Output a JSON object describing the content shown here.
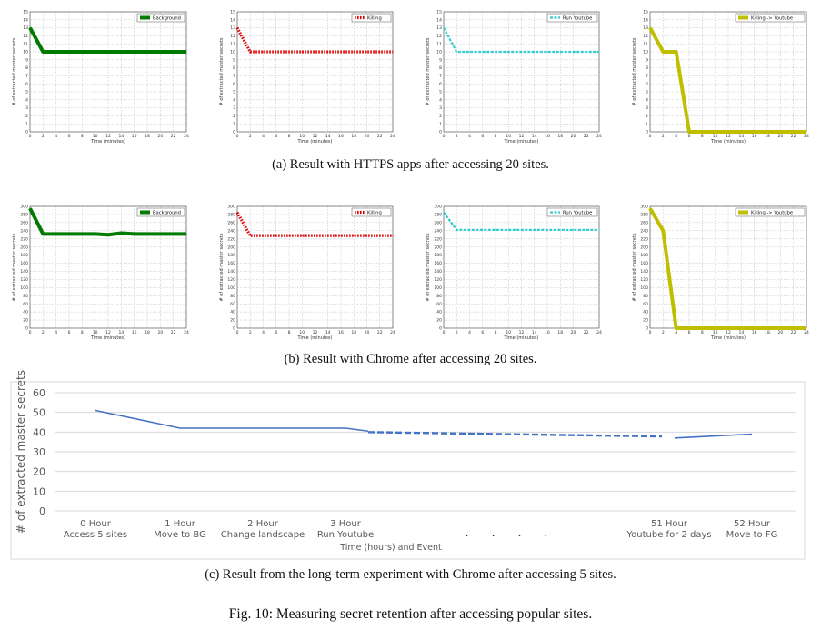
{
  "captions": {
    "a": "(a) Result with HTTPS apps after accessing 20 sites.",
    "b": "(b) Result with Chrome after accessing 20 sites.",
    "c": "(c) Result from the long-term experiment with Chrome after accessing 5 sites.",
    "figure": "Fig. 10: Measuring secret retention after accessing popular sites."
  },
  "chart_data": [
    {
      "type": "line",
      "panel": "a",
      "xlabel": "Time (minutes)",
      "ylabel": "# of extracted master secrets",
      "xlim": [
        0,
        24
      ],
      "ylim": [
        0,
        15
      ],
      "xticks": [
        0,
        2,
        4,
        6,
        8,
        10,
        12,
        14,
        16,
        18,
        20,
        22,
        24
      ],
      "yticks": [
        0,
        1,
        2,
        3,
        4,
        5,
        6,
        7,
        8,
        9,
        10,
        11,
        12,
        13,
        14,
        15
      ],
      "grid": true,
      "legend": "top-right",
      "series": [
        {
          "name": "Background",
          "color": "#007a00",
          "style": "solid",
          "x": [
            0,
            2,
            4,
            6,
            8,
            10,
            12,
            14,
            16,
            18,
            20,
            22,
            24
          ],
          "y": [
            13,
            10,
            10,
            10,
            10,
            10,
            10,
            10,
            10,
            10,
            10,
            10,
            10
          ]
        }
      ]
    },
    {
      "type": "line",
      "panel": "a",
      "xlabel": "Time (minutes)",
      "ylabel": "# of extracted master secrets",
      "xlim": [
        0,
        24
      ],
      "ylim": [
        0,
        15
      ],
      "xticks": [
        0,
        2,
        4,
        6,
        8,
        10,
        12,
        14,
        16,
        18,
        20,
        22,
        24
      ],
      "yticks": [
        0,
        1,
        2,
        3,
        4,
        5,
        6,
        7,
        8,
        9,
        10,
        11,
        12,
        13,
        14,
        15
      ],
      "grid": true,
      "legend": "top-right",
      "series": [
        {
          "name": "Killing",
          "color": "#e00000",
          "style": "dotted",
          "x": [
            0,
            2,
            4,
            6,
            8,
            10,
            12,
            14,
            16,
            18,
            20,
            22,
            24
          ],
          "y": [
            13,
            10,
            10,
            10,
            10,
            10,
            10,
            10,
            10,
            10,
            10,
            10,
            10
          ]
        }
      ]
    },
    {
      "type": "line",
      "panel": "a",
      "xlabel": "Time (minutes)",
      "ylabel": "# of extracted master secrets",
      "xlim": [
        0,
        24
      ],
      "ylim": [
        0,
        15
      ],
      "xticks": [
        0,
        2,
        4,
        6,
        8,
        10,
        12,
        14,
        16,
        18,
        20,
        22,
        24
      ],
      "yticks": [
        0,
        1,
        2,
        3,
        4,
        5,
        6,
        7,
        8,
        9,
        10,
        11,
        12,
        13,
        14,
        15
      ],
      "grid": true,
      "legend": "top-right",
      "series": [
        {
          "name": "Run Youtube",
          "color": "#33cccc",
          "style": "dashed",
          "x": [
            0,
            2,
            4,
            6,
            8,
            10,
            12,
            14,
            16,
            18,
            20,
            22,
            24
          ],
          "y": [
            13,
            10,
            10,
            10,
            10,
            10,
            10,
            10,
            10,
            10,
            10,
            10,
            10
          ]
        }
      ]
    },
    {
      "type": "line",
      "panel": "a",
      "xlabel": "Time (minutes)",
      "ylabel": "# of extracted master secrets",
      "xlim": [
        0,
        24
      ],
      "ylim": [
        0,
        15
      ],
      "xticks": [
        0,
        2,
        4,
        6,
        8,
        10,
        12,
        14,
        16,
        18,
        20,
        22,
        24
      ],
      "yticks": [
        0,
        1,
        2,
        3,
        4,
        5,
        6,
        7,
        8,
        9,
        10,
        11,
        12,
        13,
        14,
        15
      ],
      "grid": true,
      "legend": "top-right",
      "series": [
        {
          "name": "Killing -> Youtube",
          "color": "#bfbf00",
          "style": "solid",
          "x": [
            0,
            2,
            4,
            6,
            8,
            10,
            12,
            14,
            16,
            18,
            20,
            22,
            24
          ],
          "y": [
            13,
            10,
            10,
            0,
            0,
            0,
            0,
            0,
            0,
            0,
            0,
            0,
            0
          ]
        }
      ]
    },
    {
      "type": "line",
      "panel": "b",
      "xlabel": "Time (minutes)",
      "ylabel": "# of extracted master secrets",
      "xlim": [
        0,
        24
      ],
      "ylim": [
        0,
        300
      ],
      "xticks": [
        0,
        2,
        4,
        6,
        8,
        10,
        12,
        14,
        16,
        18,
        20,
        22,
        24
      ],
      "yticks": [
        0,
        20,
        40,
        60,
        80,
        100,
        120,
        140,
        160,
        180,
        200,
        220,
        240,
        260,
        280,
        300
      ],
      "grid": true,
      "legend": "top-right",
      "series": [
        {
          "name": "Background",
          "color": "#007a00",
          "style": "solid",
          "x": [
            0,
            2,
            4,
            6,
            8,
            10,
            12,
            14,
            16,
            18,
            20,
            22,
            24
          ],
          "y": [
            295,
            232,
            232,
            232,
            232,
            232,
            230,
            234,
            232,
            232,
            232,
            232,
            232
          ]
        }
      ]
    },
    {
      "type": "line",
      "panel": "b",
      "xlabel": "Time (minutes)",
      "ylabel": "# of extracted master secrets",
      "xlim": [
        0,
        24
      ],
      "ylim": [
        0,
        300
      ],
      "xticks": [
        0,
        2,
        4,
        6,
        8,
        10,
        12,
        14,
        16,
        18,
        20,
        22,
        24
      ],
      "yticks": [
        0,
        20,
        40,
        60,
        80,
        100,
        120,
        140,
        160,
        180,
        200,
        220,
        240,
        260,
        280,
        300
      ],
      "grid": true,
      "legend": "top-right",
      "series": [
        {
          "name": "Killing",
          "color": "#e00000",
          "style": "dotted",
          "x": [
            0,
            2,
            4,
            6,
            8,
            10,
            12,
            14,
            16,
            18,
            20,
            22,
            24
          ],
          "y": [
            285,
            228,
            228,
            228,
            228,
            228,
            228,
            228,
            228,
            228,
            228,
            228,
            228
          ]
        }
      ]
    },
    {
      "type": "line",
      "panel": "b",
      "xlabel": "Time (minutes)",
      "ylabel": "# of extracted master secrets",
      "xlim": [
        0,
        24
      ],
      "ylim": [
        0,
        300
      ],
      "xticks": [
        0,
        2,
        4,
        6,
        8,
        10,
        12,
        14,
        16,
        18,
        20,
        22,
        24
      ],
      "yticks": [
        0,
        20,
        40,
        60,
        80,
        100,
        120,
        140,
        160,
        180,
        200,
        220,
        240,
        260,
        280,
        300
      ],
      "grid": true,
      "legend": "top-right",
      "series": [
        {
          "name": "Run Youtube",
          "color": "#33cccc",
          "style": "dashed",
          "x": [
            0,
            2,
            4,
            6,
            8,
            10,
            12,
            14,
            16,
            18,
            20,
            22,
            24
          ],
          "y": [
            285,
            242,
            242,
            242,
            242,
            242,
            242,
            242,
            242,
            242,
            242,
            242,
            242
          ]
        }
      ]
    },
    {
      "type": "line",
      "panel": "b",
      "xlabel": "Time (minutes)",
      "ylabel": "# of extracted master secrets",
      "xlim": [
        0,
        24
      ],
      "ylim": [
        0,
        300
      ],
      "xticks": [
        0,
        2,
        4,
        6,
        8,
        10,
        12,
        14,
        16,
        18,
        20,
        22,
        24
      ],
      "yticks": [
        0,
        20,
        40,
        60,
        80,
        100,
        120,
        140,
        160,
        180,
        200,
        220,
        240,
        260,
        280,
        300
      ],
      "grid": true,
      "legend": "top-right",
      "series": [
        {
          "name": "Killing -> Youtube",
          "color": "#bfbf00",
          "style": "solid",
          "x": [
            0,
            2,
            4,
            6,
            8,
            10,
            12,
            14,
            16,
            18,
            20,
            22,
            24
          ],
          "y": [
            295,
            240,
            0,
            0,
            0,
            0,
            0,
            0,
            0,
            0,
            0,
            0,
            0
          ]
        }
      ]
    },
    {
      "type": "line",
      "panel": "c",
      "xlabel": "Time (hours) and Event",
      "ylabel": "# of extracted master secrets",
      "ylim": [
        0,
        60
      ],
      "yticks": [
        0,
        10,
        20,
        30,
        40,
        50,
        60
      ],
      "grid": true,
      "categories": [
        [
          "0 Hour",
          "Access 5 sites"
        ],
        [
          "1 Hour",
          "Move to BG"
        ],
        [
          "2 Hour",
          "Change landscape"
        ],
        [
          "3 Hour",
          "Run Youtube"
        ],
        [
          "51 Hour",
          "Youtube for 2 days"
        ],
        [
          "52 Hour",
          "Move to FG"
        ]
      ],
      "ellipsis": ". . . .",
      "color": "#4472c4",
      "segments": [
        {
          "style": "solid",
          "points": [
            [
              "0 Hour",
              51
            ],
            [
              "1 Hour",
              42
            ],
            [
              "2 Hour",
              42
            ],
            [
              "3 Hour",
              42
            ],
            [
              "3 Hour+",
              40.5
            ]
          ]
        },
        {
          "style": "dashed",
          "points": [
            [
              "3 Hour+",
              40
            ],
            [
              "51 Hour-",
              37.8
            ]
          ]
        },
        {
          "style": "solid",
          "points": [
            [
              "51 Hour",
              37
            ],
            [
              "52 Hour",
              39
            ]
          ]
        }
      ]
    }
  ]
}
